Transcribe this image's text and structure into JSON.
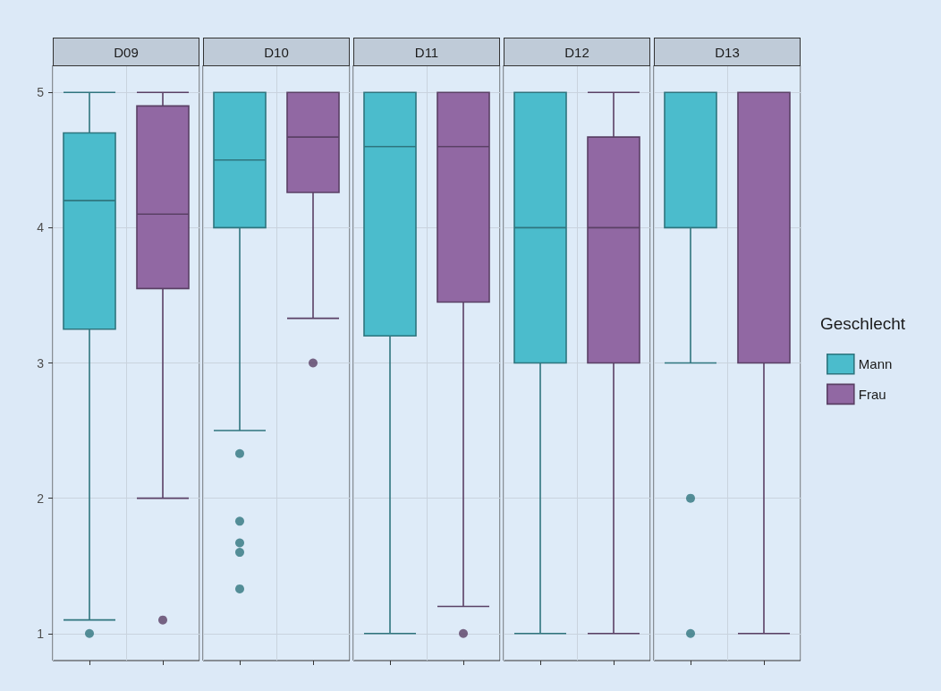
{
  "chart_data": {
    "type": "box",
    "categories": [
      "D09",
      "D10",
      "D11",
      "D12",
      "D13"
    ],
    "ylim": [
      0.8,
      5.2
    ],
    "yticks": [
      1,
      2,
      3,
      4,
      5
    ],
    "grid": true,
    "legend": "right",
    "legend_title": "Geschlecht",
    "series": [
      {
        "name": "Mann",
        "color": "#4bbccc",
        "boxes": [
          {
            "low": 1.1,
            "q1": 3.25,
            "median": 4.2,
            "q3": 4.7,
            "high": 5,
            "outliers": [
              1
            ]
          },
          {
            "low": 2.5,
            "q1": 4,
            "median": 4.5,
            "q3": 5,
            "high": 5,
            "outliers": [
              2.33,
              1.83,
              1.67,
              1.6,
              1.33
            ]
          },
          {
            "low": 1,
            "q1": 3.2,
            "median": 4.6,
            "q3": 5,
            "high": 5
          },
          {
            "low": 1,
            "q1": 3,
            "median": 4,
            "q3": 5,
            "high": 5
          },
          {
            "low": 3,
            "q1": 4,
            "median": 5,
            "q3": 5,
            "high": 5,
            "outliers": [
              2,
              1
            ]
          }
        ]
      },
      {
        "name": "Frau",
        "color": "#9168a3",
        "boxes": [
          {
            "low": 2,
            "q1": 3.55,
            "median": 4.1,
            "q3": 4.9,
            "high": 5,
            "outliers": [
              1.1
            ]
          },
          {
            "low": 3.33,
            "q1": 4.26,
            "median": 4.67,
            "q3": 5,
            "high": 5,
            "outliers": [
              3
            ]
          },
          {
            "low": 1.2,
            "q1": 3.45,
            "median": 4.6,
            "q3": 5,
            "high": 5,
            "outliers": [
              1
            ]
          },
          {
            "low": 1,
            "q1": 3,
            "median": 4,
            "q3": 4.67,
            "high": 5
          },
          {
            "low": 1,
            "q1": 3,
            "median": 5,
            "q3": 5,
            "high": 5
          }
        ]
      }
    ]
  }
}
